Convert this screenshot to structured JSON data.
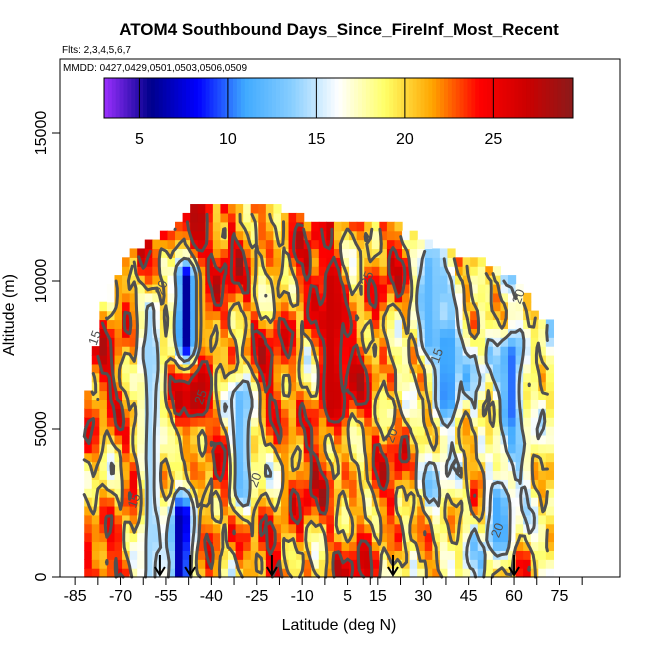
{
  "chart_data": {
    "type": "heatmap",
    "title": "ATOM4 Southbound Days_Since_FireInf_Most_Recent",
    "subtitle_flights": "Flts: 2,3,4,5,6,7",
    "subtitle_dates": "MMDD: 0427,0429,0501,0503,0506,0509",
    "xlabel": "Latitude (deg N)",
    "ylabel": "Altitude (m)",
    "xlim": [
      -90,
      95
    ],
    "ylim": [
      0,
      17500
    ],
    "x_tick_values": [
      -85,
      -70,
      -55,
      -40,
      -25,
      -10,
      5,
      15,
      30,
      45,
      60,
      75
    ],
    "x_tick_labels": [
      "-85",
      "-70",
      "-55",
      "-40",
      "-25",
      "-10",
      "5",
      "15",
      "30",
      "45",
      "60",
      "75"
    ],
    "y_tick_values": [
      0,
      5000,
      10000,
      15000
    ],
    "y_tick_labels": [
      "0",
      "5000",
      "10000",
      "15000"
    ],
    "colorbar": {
      "range": [
        3,
        29.5
      ],
      "tick_values": [
        5,
        10,
        15,
        20,
        25
      ],
      "tick_labels": [
        "5",
        "10",
        "15",
        "20",
        "25"
      ],
      "colors": [
        "#9b30ff",
        "#00008b",
        "#0000ff",
        "#3fa9ff",
        "#87ceff",
        "#ffffff",
        "#ffff66",
        "#ffa500",
        "#ff0000",
        "#cd0000",
        "#8b1a1a"
      ]
    },
    "contour_levels": [
      15,
      20,
      25
    ],
    "contour_label_values": [
      "15",
      "20",
      "25"
    ],
    "data_extent": {
      "lat_range": [
        -82,
        71
      ],
      "alt_top_by_lat": [
        {
          "lat": -82,
          "alt": 5500
        },
        {
          "lat": -75,
          "alt": 9500
        },
        {
          "lat": -65,
          "alt": 11000
        },
        {
          "lat": -55,
          "alt": 11500
        },
        {
          "lat": -45,
          "alt": 12400
        },
        {
          "lat": -20,
          "alt": 12400
        },
        {
          "lat": -10,
          "alt": 12000
        },
        {
          "lat": 20,
          "alt": 11800
        },
        {
          "lat": 35,
          "alt": 11000
        },
        {
          "lat": 50,
          "alt": 10500
        },
        {
          "lat": 60,
          "alt": 10000
        },
        {
          "lat": 70,
          "alt": 8500
        }
      ]
    },
    "features": [
      {
        "lat": -45,
        "alt_range": [
          6000,
          12000
        ],
        "value": 28
      },
      {
        "lat": 0,
        "alt_range": [
          6000,
          10000
        ],
        "value": 27
      },
      {
        "lat": -60,
        "alt_range": [
          0,
          9000
        ],
        "value": 14
      },
      {
        "lat": -50,
        "alt_range": [
          0,
          2000
        ],
        "value": 6
      },
      {
        "lat": -48,
        "alt_range": [
          8000,
          10000
        ],
        "value": 6
      },
      {
        "lat": -30,
        "alt_range": [
          3000,
          6000
        ],
        "value": 12
      },
      {
        "lat": 32,
        "alt_range": [
          8000,
          10500
        ],
        "value": 12
      },
      {
        "lat": 38,
        "alt_range": [
          6000,
          8000
        ],
        "value": 10
      },
      {
        "lat": 59,
        "alt_range": [
          5500,
          7500
        ],
        "value": 10
      },
      {
        "lat": 55,
        "alt_range": [
          1500,
          2500
        ],
        "value": 11
      }
    ],
    "flight_arrow_lats": [
      -57,
      -47,
      -20,
      20,
      60
    ]
  }
}
